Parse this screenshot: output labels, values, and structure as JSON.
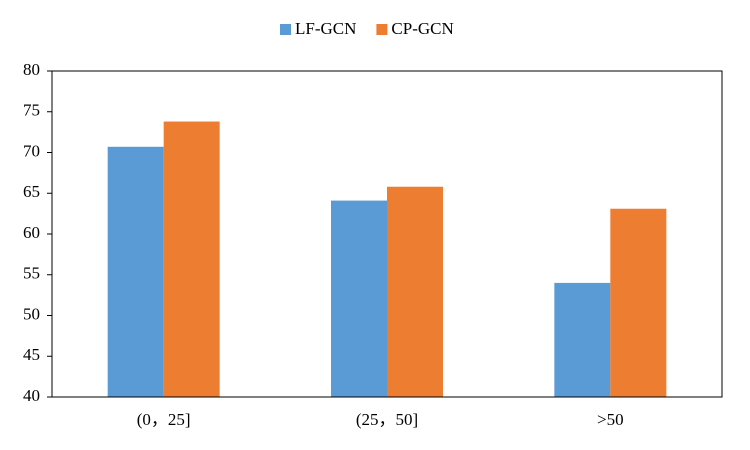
{
  "chart_data": {
    "type": "bar",
    "categories": [
      "(0，25]",
      "(25，50]",
      ">50"
    ],
    "series": [
      {
        "name": "LF-GCN",
        "color": "#5b9bd5",
        "values": [
          70.7,
          64.1,
          54.0
        ]
      },
      {
        "name": "CP-GCN",
        "color": "#ed7d31",
        "values": [
          73.8,
          65.8,
          63.1
        ]
      }
    ],
    "ylim": [
      40,
      80
    ],
    "yticks": [
      40,
      45,
      50,
      55,
      60,
      65,
      70,
      75,
      80
    ],
    "grid": false,
    "legend": "top"
  }
}
